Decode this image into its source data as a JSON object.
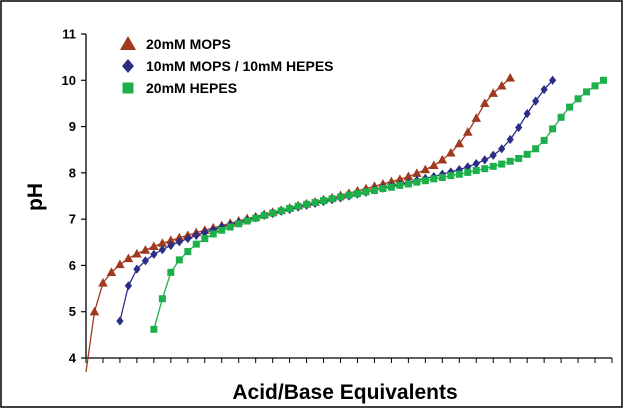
{
  "chart_data": {
    "type": "scatter",
    "title": "",
    "xlabel": "Acid/Base Equivalents",
    "ylabel": "pH",
    "ylim": [
      4,
      11
    ],
    "yticks": [
      "4",
      "5",
      "6",
      "7",
      "8",
      "9",
      "10",
      "11"
    ],
    "xlim": [
      0,
      62
    ],
    "grid": false,
    "legend": "top-left",
    "series": [
      {
        "name": "20mM MOPS",
        "marker": "triangle",
        "color": "#a0391f",
        "x": [
          0,
          1,
          2,
          3,
          4,
          5,
          6,
          7,
          8,
          9,
          10,
          11,
          12,
          13,
          14,
          15,
          16,
          17,
          18,
          19,
          20,
          21,
          22,
          23,
          24,
          25,
          26,
          27,
          28,
          29,
          30,
          31,
          32,
          33,
          34,
          35,
          36,
          37,
          38,
          39,
          40,
          41,
          42,
          43,
          44,
          45,
          46,
          47,
          48,
          49,
          50
        ],
        "y": [
          3.7,
          5.0,
          5.62,
          5.85,
          6.02,
          6.15,
          6.25,
          6.33,
          6.41,
          6.48,
          6.54,
          6.6,
          6.65,
          6.71,
          6.76,
          6.81,
          6.86,
          6.91,
          6.96,
          7.01,
          7.05,
          7.1,
          7.15,
          7.19,
          7.24,
          7.29,
          7.33,
          7.37,
          7.42,
          7.46,
          7.51,
          7.56,
          7.61,
          7.66,
          7.71,
          7.76,
          7.81,
          7.86,
          7.92,
          7.99,
          8.07,
          8.16,
          8.28,
          8.43,
          8.63,
          8.88,
          9.18,
          9.5,
          9.72,
          9.88,
          10.05
        ]
      },
      {
        "name": "10mM MOPS / 10mM HEPES",
        "marker": "diamond",
        "color": "#2b2e85",
        "x": [
          4,
          5,
          6,
          7,
          8,
          9,
          10,
          11,
          12,
          13,
          14,
          15,
          16,
          17,
          18,
          19,
          20,
          21,
          22,
          23,
          24,
          25,
          26,
          27,
          28,
          29,
          30,
          31,
          32,
          33,
          34,
          35,
          36,
          37,
          38,
          39,
          40,
          41,
          42,
          43,
          44,
          45,
          46,
          47,
          48,
          49,
          50,
          51,
          52,
          53,
          54,
          55
        ],
        "y": [
          4.8,
          5.56,
          5.92,
          6.1,
          6.24,
          6.34,
          6.43,
          6.51,
          6.58,
          6.65,
          6.71,
          6.77,
          6.83,
          6.88,
          6.93,
          6.98,
          7.03,
          7.08,
          7.12,
          7.17,
          7.21,
          7.26,
          7.3,
          7.34,
          7.38,
          7.42,
          7.46,
          7.5,
          7.54,
          7.58,
          7.63,
          7.67,
          7.71,
          7.75,
          7.79,
          7.84,
          7.88,
          7.92,
          7.97,
          8.02,
          8.07,
          8.13,
          8.2,
          8.28,
          8.38,
          8.52,
          8.72,
          8.98,
          9.28,
          9.55,
          9.8,
          10.0
        ]
      },
      {
        "name": "20mM HEPES",
        "marker": "square",
        "color": "#1cb04a",
        "x": [
          8,
          9,
          10,
          11,
          12,
          13,
          14,
          15,
          16,
          17,
          18,
          19,
          20,
          21,
          22,
          23,
          24,
          25,
          26,
          27,
          28,
          29,
          30,
          31,
          32,
          33,
          34,
          35,
          36,
          37,
          38,
          39,
          40,
          41,
          42,
          43,
          44,
          45,
          46,
          47,
          48,
          49,
          50,
          51,
          52,
          53,
          54,
          55,
          56,
          57,
          58,
          59,
          60,
          61
        ],
        "y": [
          4.62,
          5.28,
          5.85,
          6.12,
          6.3,
          6.46,
          6.58,
          6.68,
          6.76,
          6.83,
          6.9,
          6.96,
          7.02,
          7.08,
          7.13,
          7.18,
          7.23,
          7.28,
          7.32,
          7.36,
          7.4,
          7.44,
          7.48,
          7.52,
          7.55,
          7.59,
          7.62,
          7.66,
          7.69,
          7.73,
          7.76,
          7.8,
          7.83,
          7.87,
          7.9,
          7.94,
          7.97,
          8.01,
          8.05,
          8.09,
          8.14,
          8.19,
          8.25,
          8.31,
          8.4,
          8.52,
          8.7,
          8.95,
          9.2,
          9.42,
          9.6,
          9.75,
          9.88,
          10.0
        ]
      }
    ]
  }
}
